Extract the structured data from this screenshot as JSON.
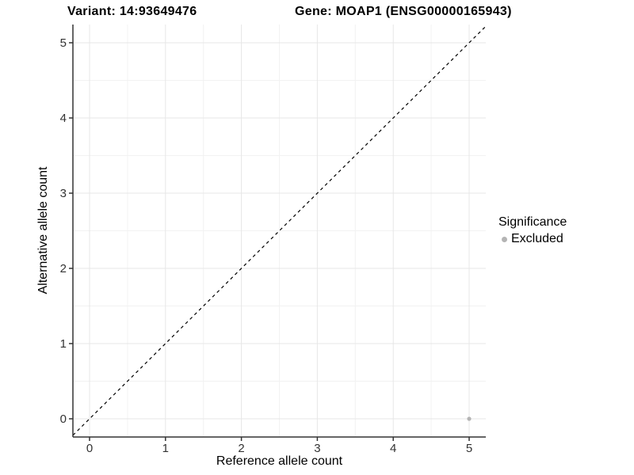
{
  "figure": {
    "title_left": "Variant: 14:93649476",
    "title_right": "Gene: MOAP1 (ENSG00000165943)",
    "background": "#ffffff"
  },
  "chart_data": {
    "type": "scatter",
    "title": "Variant: 14:93649476    Gene: MOAP1 (ENSG00000165943)",
    "xlabel": "Reference allele count",
    "ylabel": "Alternative allele count",
    "x_ticks": [
      0,
      1,
      2,
      3,
      4,
      5
    ],
    "y_ticks": [
      0,
      1,
      2,
      3,
      4,
      5
    ],
    "x_minor_ticks": [
      0.5,
      1.5,
      2.5,
      3.5,
      4.5
    ],
    "y_minor_ticks": [
      0.5,
      1.5,
      2.5,
      3.5,
      4.5
    ],
    "xlim": [
      -0.22,
      5.22
    ],
    "ylim": [
      -0.24,
      5.24
    ],
    "grid": {
      "major": true,
      "minor": true
    },
    "points": [
      {
        "x": 5,
        "y": 0,
        "series": "Excluded"
      }
    ],
    "identity_line": {
      "style": "dashed",
      "slope": 1,
      "intercept": 0
    },
    "legend": {
      "title": "Significance",
      "position": "right",
      "items": [
        {
          "label": "Excluded",
          "color": "#b4b4b4"
        }
      ]
    },
    "colors": {
      "point": "#b4b4b4",
      "grid_major": "#e7e7e7",
      "grid_minor": "#f2f2f2",
      "axis": "#333333",
      "identity_line": "#000000"
    }
  }
}
